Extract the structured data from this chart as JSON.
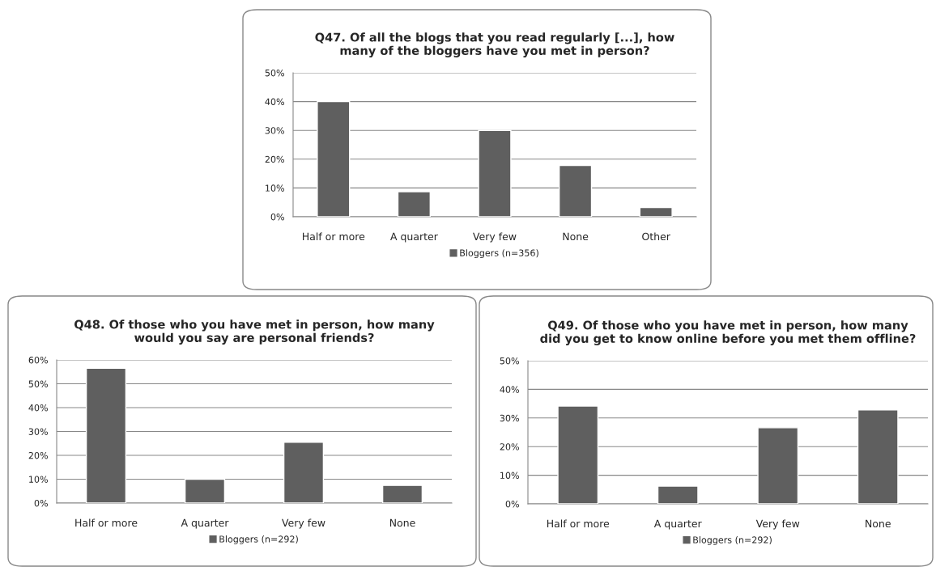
{
  "chart_data": [
    {
      "type": "bar",
      "title": "Q47. Of all the blogs that you read regularly [...], how\nmany of the bloggers have you met in person?",
      "categories": [
        "Half or more",
        "A quarter",
        "Very few",
        "None",
        "Other"
      ],
      "series": [
        {
          "name": "Bloggers (n=356)",
          "color": "#5f5f5f",
          "values": [
            40,
            8.7,
            30,
            17.8,
            3.2
          ]
        }
      ],
      "ylim": [
        0,
        50
      ],
      "yticks": [
        {
          "value": 0,
          "label": "0%"
        },
        {
          "value": 10,
          "label": "10%"
        },
        {
          "value": 20,
          "label": "20%"
        },
        {
          "value": 30,
          "label": "30%"
        },
        {
          "value": 40,
          "label": "40%"
        },
        {
          "value": 50,
          "label": "50%"
        }
      ],
      "grid": "y",
      "legend": "bottom"
    },
    {
      "type": "bar",
      "title": "Q48. Of those who you have met in person, how many\nwould you say are personal friends?",
      "categories": [
        "Half or more",
        "A quarter",
        "Very few",
        "None"
      ],
      "series": [
        {
          "name": "Bloggers (n=292)",
          "color": "#5f5f5f",
          "values": [
            56.5,
            10,
            25.5,
            7.4
          ]
        }
      ],
      "ylim": [
        0,
        60
      ],
      "yticks": [
        {
          "value": 0,
          "label": "0%"
        },
        {
          "value": 10,
          "label": "10%"
        },
        {
          "value": 20,
          "label": "20%"
        },
        {
          "value": 30,
          "label": "30%"
        },
        {
          "value": 40,
          "label": "40%"
        },
        {
          "value": 50,
          "label": "50%"
        },
        {
          "value": 60,
          "label": "60%"
        }
      ],
      "grid": "y",
      "legend": "bottom"
    },
    {
      "type": "bar",
      "title": "Q49. Of those who you have met in person, how many\ndid you get to know online before you met them offline?",
      "categories": [
        "Half or more",
        "A quarter",
        "Very few",
        "None"
      ],
      "series": [
        {
          "name": "Bloggers (n=292)",
          "color": "#5f5f5f",
          "values": [
            34.2,
            6.2,
            26.6,
            32.8
          ]
        }
      ],
      "ylim": [
        0,
        50
      ],
      "yticks": [
        {
          "value": 0,
          "label": "0%"
        },
        {
          "value": 10,
          "label": "10%"
        },
        {
          "value": 20,
          "label": "20%"
        },
        {
          "value": 30,
          "label": "30%"
        },
        {
          "value": 40,
          "label": "40%"
        },
        {
          "value": 50,
          "label": "50%"
        }
      ],
      "grid": "y",
      "legend": "bottom"
    }
  ]
}
